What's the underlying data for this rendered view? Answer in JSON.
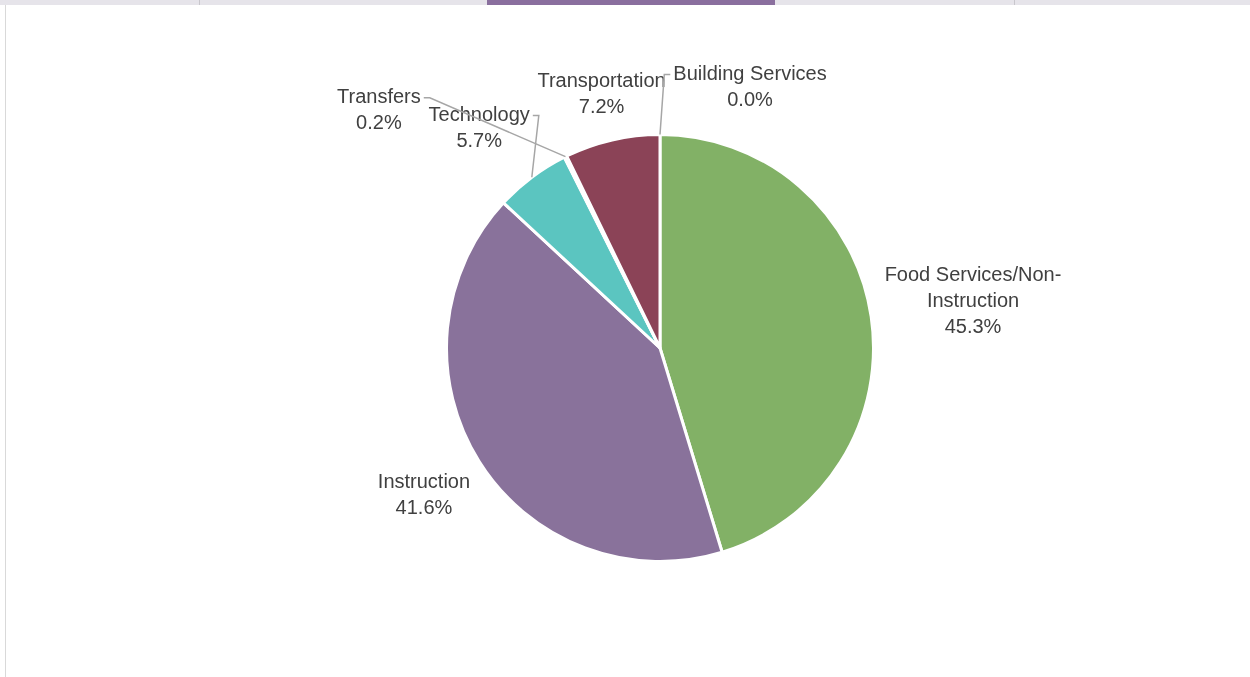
{
  "chart_data": {
    "type": "pie",
    "categories": [
      "Food Services/Non-Instruction",
      "Instruction",
      "Technology",
      "Transfers",
      "Transportation",
      "Building Services"
    ],
    "values": [
      45.3,
      41.6,
      5.7,
      0.2,
      7.2,
      0.0
    ],
    "colors": [
      "#82b166",
      "#89729b",
      "#5bc5c0",
      "#4f81bd",
      "#8b4357",
      "#f79646"
    ],
    "value_labels": [
      "45.3%",
      "41.6%",
      "5.7%",
      "0.2%",
      "7.2%",
      "0.0%"
    ],
    "legend": false
  }
}
